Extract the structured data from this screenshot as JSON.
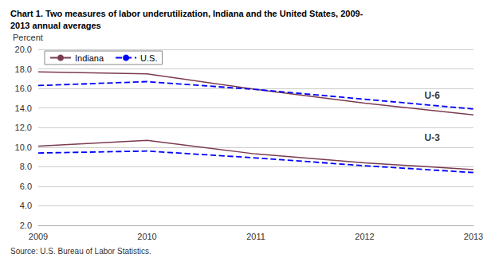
{
  "chart_data": {
    "type": "line",
    "title": "Chart 1. Two measures of labor underutilization, Indiana and the United States, 2009-",
    "subtitle": "2013 annual averages",
    "y_label": "Percent",
    "source": "Source: U.S. Bureau of Labor Statistics.",
    "x": [
      2009,
      2010,
      2011,
      2012,
      2013
    ],
    "xlim": [
      2009,
      2013
    ],
    "xticks": [
      2009,
      2010,
      2011,
      2012,
      2013
    ],
    "ylim": [
      2.0,
      20.0
    ],
    "yticks": [
      {
        "value": 2.0,
        "label": "2.0"
      },
      {
        "value": 4.0,
        "label": "4.0"
      },
      {
        "value": 6.0,
        "label": "6.0"
      },
      {
        "value": 8.0,
        "label": "8.0"
      },
      {
        "value": 10.0,
        "label": "10.0"
      },
      {
        "value": 12.0,
        "label": "12.0"
      },
      {
        "value": 14.0,
        "label": "14.0"
      },
      {
        "value": 16.0,
        "label": "16.0"
      },
      {
        "value": 18.0,
        "label": "18.0"
      },
      {
        "value": 20.0,
        "label": "20.0"
      }
    ],
    "grid": true,
    "legend": "upper left",
    "series": [
      {
        "name": "Indiana",
        "color": "#7B3B4E",
        "line_style": "solid",
        "values": [
          17.7,
          17.5,
          15.9,
          14.5,
          13.3
        ]
      },
      {
        "name": "U.S.",
        "color": "#0000FF",
        "line_style": "dashed",
        "values": [
          16.3,
          16.7,
          15.9,
          14.9,
          13.9
        ]
      },
      {
        "name": "Indiana",
        "color": "#7B3B4E",
        "line_style": "solid",
        "values": [
          10.1,
          10.7,
          9.3,
          8.4,
          7.7
        ]
      },
      {
        "name": "U.S.",
        "color": "#0000FF",
        "line_style": "dashed",
        "values": [
          9.4,
          9.6,
          8.9,
          8.1,
          7.4
        ]
      }
    ],
    "annotations": [
      {
        "text": "U-6",
        "x": 2012.55,
        "y": 15.3
      },
      {
        "text": "U-3",
        "x": 2012.55,
        "y": 11.0
      }
    ]
  }
}
